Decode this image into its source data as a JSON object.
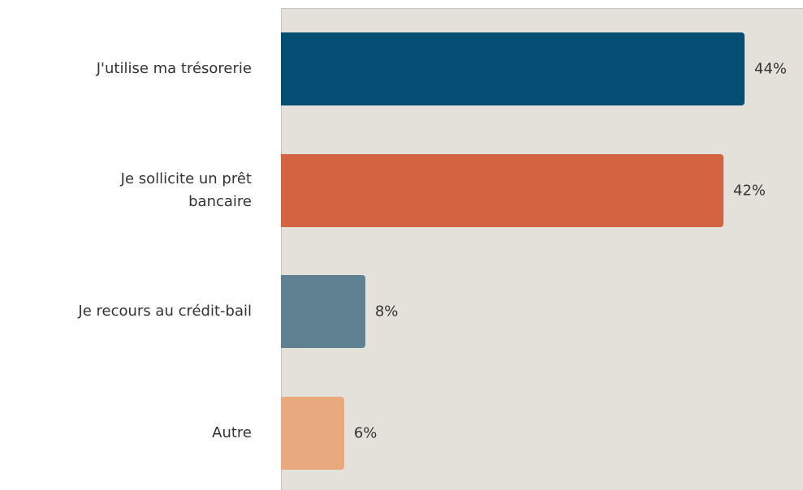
{
  "chart_data": {
    "type": "hbar",
    "categories": [
      "J'utilise ma trésorerie",
      "Je sollicite un prêt\nbancaire",
      "Je recours au crédit-bail",
      "Autre"
    ],
    "values": [
      44,
      42,
      8,
      6
    ],
    "value_labels": [
      "44%",
      "42%",
      "8%",
      "6%"
    ],
    "colors": [
      "#054d73",
      "#d46341",
      "#5f8191",
      "#e9a97f"
    ]
  }
}
